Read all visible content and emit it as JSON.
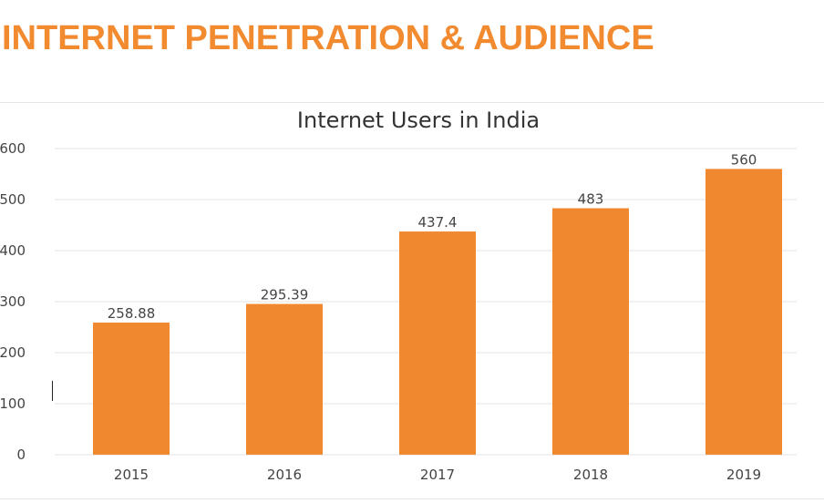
{
  "page": {
    "heading": "INTERNET PENETRATION & AUDIENCE",
    "heading_color": "#f28a30"
  },
  "chart_data": {
    "type": "bar",
    "title": "Internet Users in India",
    "xlabel": "",
    "ylabel": "",
    "categories": [
      "2015",
      "2016",
      "2017",
      "2018",
      "2019"
    ],
    "series": [
      {
        "values": [
          258.88,
          295.39,
          437.4,
          483,
          560
        ],
        "data_labels": [
          "258.88",
          "295.39",
          "437.4",
          "483",
          "560"
        ],
        "color": "#f0882f"
      }
    ],
    "ylim": [
      0,
      600
    ],
    "yticks": [
      0,
      100,
      200,
      300,
      400,
      500,
      600
    ],
    "ytick_labels": [
      "0",
      "100",
      "200",
      "300",
      "400",
      "500",
      "600"
    ],
    "grid": true,
    "legend": "none"
  }
}
